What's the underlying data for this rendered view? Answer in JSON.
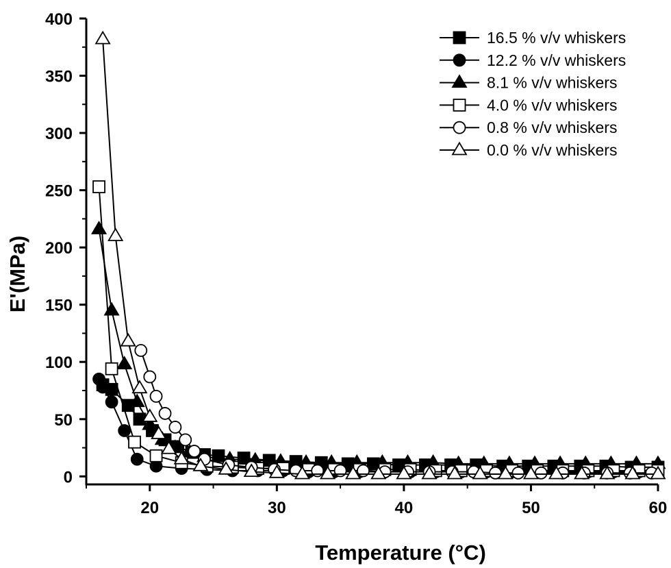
{
  "chart_data": {
    "type": "line",
    "title": "",
    "xlabel": "Temperature (°C)",
    "ylabel": "E'(MPa)",
    "xlim": [
      15,
      60
    ],
    "ylim": [
      -7,
      400
    ],
    "xticks": [
      20,
      30,
      40,
      50,
      60
    ],
    "yticks": [
      0,
      50,
      100,
      150,
      200,
      250,
      300,
      350,
      400
    ],
    "grid": false,
    "legend_position": "top-right",
    "series": [
      {
        "name": "16.5 % v/v whiskers",
        "marker": "square-filled",
        "x": [
          16.3,
          17.0,
          18.3,
          19.2,
          20.2,
          21.2,
          22.2,
          23.3,
          24.3,
          25.4,
          27.4,
          29.4,
          31.5,
          33.5,
          35.6,
          37.6,
          39.6,
          41.7,
          43.7,
          45.7,
          47.8,
          49.8,
          51.8,
          53.9,
          55.9,
          57.9,
          60.0
        ],
        "y": [
          80,
          76,
          62,
          50,
          40,
          32,
          26,
          21,
          19,
          18,
          16,
          14,
          13,
          12,
          11,
          11,
          10,
          10,
          10,
          10,
          9,
          9,
          9,
          9,
          9,
          8,
          8
        ]
      },
      {
        "name": "12.2 % v/v whiskers",
        "marker": "circle-filled",
        "x": [
          16.0,
          16.3,
          17.0,
          18.0,
          19.0,
          20.5,
          22.5,
          24.5,
          26.5,
          28.5,
          30.5,
          32.5,
          34.5,
          36.5,
          38.5,
          40.5,
          42.5,
          44.5,
          46.5,
          48.5,
          50.5,
          52.5,
          54.5,
          56.5,
          58.5,
          60.0
        ],
        "y": [
          85,
          78,
          65,
          40,
          15,
          9,
          7,
          6,
          5,
          5,
          5,
          4,
          4,
          4,
          4,
          4,
          4,
          4,
          4,
          4,
          4,
          4,
          4,
          4,
          4,
          4
        ]
      },
      {
        "name": "8.1 % v/v whiskers",
        "marker": "triangle-filled",
        "x": [
          16.0,
          17.0,
          18.0,
          19.0,
          20.0,
          21.0,
          22.0,
          23.0,
          24.3,
          26.3,
          28.3,
          30.3,
          32.3,
          34.3,
          36.3,
          38.3,
          40.3,
          42.3,
          44.3,
          46.3,
          48.3,
          50.3,
          52.3,
          54.3,
          56.3,
          58.3,
          60.0
        ],
        "y": [
          216,
          145,
          98,
          65,
          45,
          32,
          25,
          20,
          17,
          15,
          14,
          13,
          12,
          12,
          12,
          12,
          12,
          12,
          11,
          11,
          11,
          11,
          11,
          11,
          11,
          11,
          11
        ]
      },
      {
        "name": "4.0 % v/v whiskers",
        "marker": "square-open",
        "x": [
          16.0,
          17.0,
          18.8,
          20.5,
          22.5,
          24.5,
          26.5,
          28.5,
          30.5,
          32.5,
          34.5,
          36.5,
          38.5,
          40.5,
          42.5,
          44.5,
          46.5,
          48.5,
          50.5,
          52.5,
          54.5,
          56.5,
          58.5,
          60.0
        ],
        "y": [
          253,
          94,
          30,
          18,
          12,
          9,
          8,
          7,
          7,
          6,
          6,
          6,
          6,
          6,
          5,
          5,
          5,
          5,
          5,
          5,
          5,
          5,
          5,
          5
        ]
      },
      {
        "name": "0.8 % v/v whiskers",
        "marker": "circle-open",
        "x": [
          19.3,
          20.0,
          20.5,
          21.2,
          22.0,
          22.8,
          23.5,
          24.3,
          26.2,
          28.0,
          29.8,
          31.5,
          33.2,
          35.0,
          36.8,
          38.5,
          40.3,
          42.0,
          43.8,
          45.5,
          47.2,
          49.0,
          50.8,
          52.5,
          54.2,
          56.0,
          57.8,
          59.5
        ],
        "y": [
          110,
          87,
          70,
          55,
          43,
          32,
          22,
          15,
          10,
          8,
          6,
          5,
          5,
          5,
          5,
          4,
          4,
          4,
          4,
          4,
          3,
          3,
          3,
          3,
          3,
          3,
          3,
          3
        ]
      },
      {
        "name": "0.0 % v/v whiskers",
        "marker": "triangle-open",
        "x": [
          16.3,
          17.3,
          18.3,
          19.2,
          20.0,
          20.7,
          21.5,
          22.5,
          24.0,
          26.0,
          28.0,
          30.0,
          32.0,
          34.0,
          36.0,
          38.0,
          40.0,
          42.0,
          44.0,
          46.0,
          48.0,
          50.0,
          52.0,
          54.0,
          56.0,
          58.0,
          60.0
        ],
        "y": [
          382,
          210,
          118,
          77,
          52,
          37,
          24,
          15,
          9,
          6,
          4,
          3,
          2,
          2,
          2,
          2,
          2,
          2,
          2,
          2,
          2,
          2,
          2,
          2,
          2,
          2,
          2
        ]
      }
    ]
  }
}
